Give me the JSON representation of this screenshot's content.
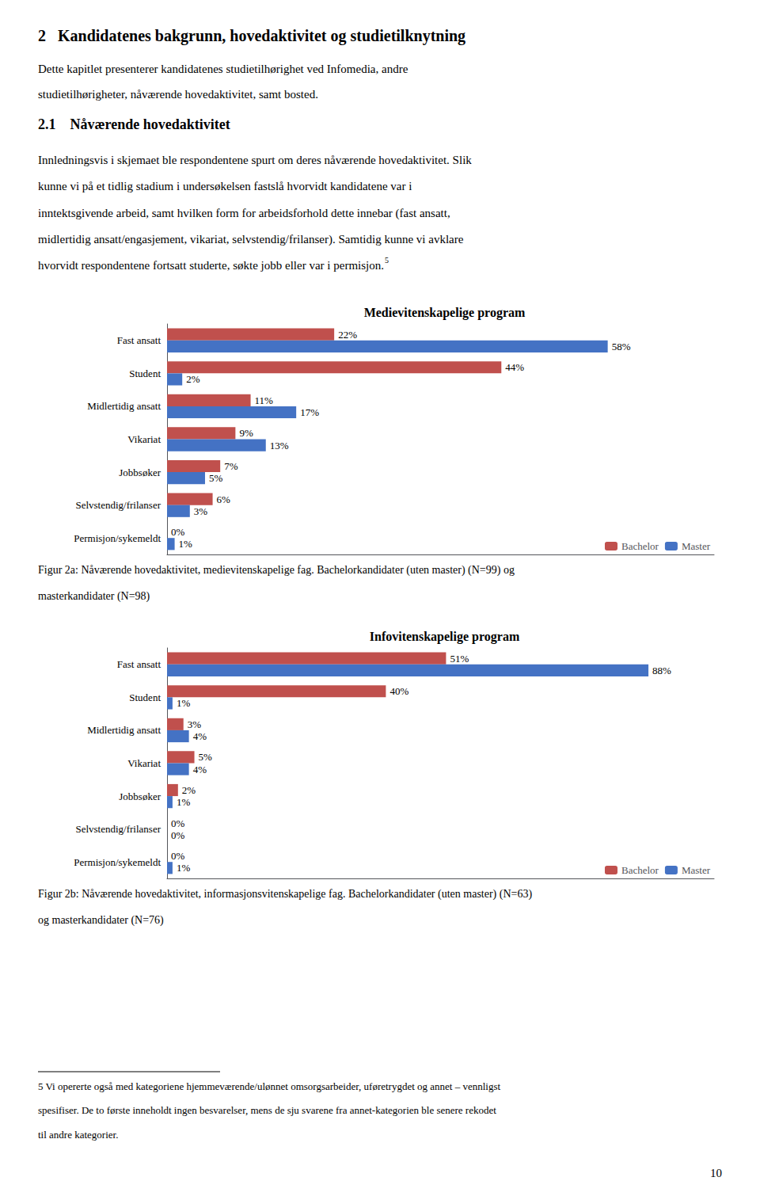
{
  "title": "2   Kandidatenes bakgrunn, hovedaktivitet og studietilknytning",
  "intro": [
    "Dette kapitlet presenterer kandidatenes studietilhørighet ved Infomedia, andre",
    "studietilhørigheter, nåværende hovedaktivitet, samt bosted."
  ],
  "section_title": "2.1    Nåværende hovedaktivitet",
  "body": [
    "Innledningsvis i skjemaet ble respondentene spurt om deres nåværende hovedaktivitet. Slik",
    "kunne vi på et tidlig stadium i undersøkelsen fastslå hvorvidt kandidatene var i",
    "inntektsgivende arbeid, samt hvilken form for arbeidsforhold dette innebar (fast ansatt,",
    "midlertidig ansatt/engasjement, vikariat, selvstendig/frilanser). Samtidig kunne vi avklare",
    "hvorvidt respondentene fortsatt studerte, søkte jobb eller var i permisjon."
  ],
  "body_superscript": "5",
  "chart_data": [
    {
      "type": "bar",
      "orientation": "horizontal",
      "title": "Medievitenskapelige program",
      "categories": [
        "Fast ansatt",
        "Student",
        "Midlertidig ansatt",
        "Vikariat",
        "Jobbsøker",
        "Selvstendig/frilanser",
        "Permisjon/sykemeldt"
      ],
      "series": [
        {
          "name": "Bachelor",
          "color": "#C0504D",
          "values": [
            22,
            44,
            11,
            9,
            7,
            6,
            0
          ],
          "value_labels": [
            "22%",
            "44%",
            "11%",
            "9%",
            "7%",
            "6%",
            "0%"
          ]
        },
        {
          "name": "Master",
          "color": "#4472C4",
          "values": [
            58,
            2,
            17,
            13,
            5,
            3,
            1
          ],
          "value_labels": [
            "58%",
            "2%",
            "17%",
            "13%",
            "5%",
            "3%",
            "1%"
          ]
        }
      ],
      "xlim": [
        0,
        72
      ],
      "tick_labels": "y",
      "grid": false,
      "legend": "lower right",
      "data_labels": true,
      "annotations": [
        "Figur 2a: Nåværende hovedaktivitet, medievitenskapelige fag. Bachelorkandidater (uten master) (N=99) og",
        "masterkandidater (N=98)"
      ]
    },
    {
      "type": "bar",
      "orientation": "horizontal",
      "title": "Infovitenskapelige program",
      "categories": [
        "Fast ansatt",
        "Student",
        "Midlertidig ansatt",
        "Vikariat",
        "Jobbsøker",
        "Selvstendig/frilanser",
        "Permisjon/sykemeldt"
      ],
      "series": [
        {
          "name": "Bachelor",
          "color": "#C0504D",
          "values": [
            51,
            40,
            3,
            5,
            2,
            0,
            0
          ],
          "value_labels": [
            "51%",
            "40%",
            "3%",
            "5%",
            "2%",
            "0%",
            "0%"
          ]
        },
        {
          "name": "Master",
          "color": "#4472C4",
          "values": [
            88,
            1,
            4,
            4,
            1,
            0,
            1
          ],
          "value_labels": [
            "88%",
            "1%",
            "4%",
            "4%",
            "1%",
            "0%",
            "1%"
          ]
        }
      ],
      "xlim": [
        0,
        100
      ],
      "tick_labels": "y",
      "grid": false,
      "legend": "lower right",
      "data_labels": true,
      "annotations": [
        "Figur 2b: Nåværende hovedaktivitet, informasjonsvitenskapelige fag. Bachelorkandidater (uten master) (N=63)",
        "og masterkandidater (N=76)"
      ]
    }
  ],
  "footnote": [
    "5 Vi opererte også med kategoriene hjemmeværende/ulønnet omsorgsarbeider, uføretrygdet og annet – vennligst",
    "spesifiser. De to første inneholdt ingen besvarelser, mens de sju svarene fra annet-kategorien ble senere rekodet",
    "til andre kategorier."
  ],
  "page_number": "10"
}
